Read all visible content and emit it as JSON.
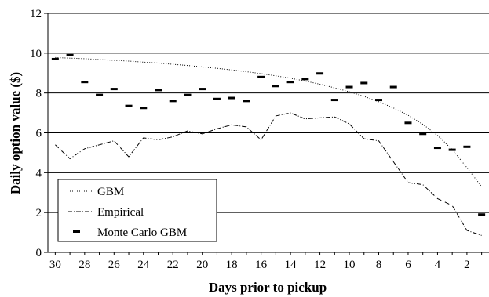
{
  "chart_data": {
    "type": "line",
    "xlabel": "Days prior to pickup",
    "ylabel": "Daily option value ($)",
    "xlim": [
      30.5,
      0.5
    ],
    "ylim": [
      0,
      12
    ],
    "x_reversed": true,
    "xticks": [
      30,
      28,
      26,
      24,
      22,
      20,
      18,
      16,
      14,
      12,
      10,
      8,
      6,
      4,
      2
    ],
    "yticks": [
      0,
      2,
      4,
      6,
      8,
      10,
      12
    ],
    "grid": "horizontal",
    "legend_position": "bottom-left",
    "colors": {
      "axis": "#000000",
      "series": "#000000",
      "grid": "#000000"
    },
    "series": [
      {
        "name": "GBM",
        "style": "dotted",
        "x": [
          30,
          29,
          28,
          27,
          26,
          25,
          24,
          23,
          22,
          21,
          20,
          19,
          18,
          17,
          16,
          15,
          14,
          13,
          12,
          11,
          10,
          9,
          8,
          7,
          6,
          5,
          4,
          3,
          2,
          1
        ],
        "values": [
          9.78,
          9.75,
          9.72,
          9.68,
          9.64,
          9.6,
          9.55,
          9.5,
          9.44,
          9.38,
          9.31,
          9.24,
          9.16,
          9.07,
          8.97,
          8.86,
          8.74,
          8.6,
          8.44,
          8.26,
          8.06,
          7.83,
          7.56,
          7.25,
          6.88,
          6.43,
          5.87,
          5.16,
          4.25,
          3.3
        ]
      },
      {
        "name": "Empirical",
        "style": "dash-dot",
        "x": [
          30,
          29,
          28,
          27,
          26,
          25,
          24,
          23,
          22,
          21,
          20,
          19,
          18,
          17,
          16,
          15,
          14,
          13,
          12,
          11,
          10,
          9,
          8,
          7,
          6,
          5,
          4,
          3,
          2,
          1
        ],
        "values": [
          5.4,
          4.7,
          5.2,
          5.4,
          5.6,
          4.8,
          5.75,
          5.65,
          5.8,
          6.1,
          5.95,
          6.2,
          6.4,
          6.3,
          5.65,
          6.85,
          7.0,
          6.7,
          6.75,
          6.8,
          6.45,
          5.7,
          5.6,
          4.55,
          3.5,
          3.4,
          2.7,
          2.35,
          1.1,
          0.85
        ]
      },
      {
        "name": "Monte Carlo GBM",
        "style": "markers",
        "x": [
          30,
          29,
          28,
          27,
          26,
          25,
          24,
          23,
          22,
          21,
          20,
          19,
          18,
          17,
          16,
          15,
          14,
          13,
          12,
          11,
          10,
          9,
          8,
          7,
          6,
          5,
          4,
          3,
          2,
          1
        ],
        "values": [
          9.7,
          9.9,
          8.55,
          7.9,
          8.2,
          7.35,
          7.25,
          8.15,
          7.6,
          7.9,
          8.2,
          7.7,
          7.75,
          7.6,
          8.8,
          8.35,
          8.55,
          8.7,
          8.98,
          7.65,
          8.3,
          8.5,
          7.65,
          8.3,
          6.5,
          5.95,
          5.25,
          5.15,
          5.3,
          1.9
        ]
      }
    ]
  }
}
